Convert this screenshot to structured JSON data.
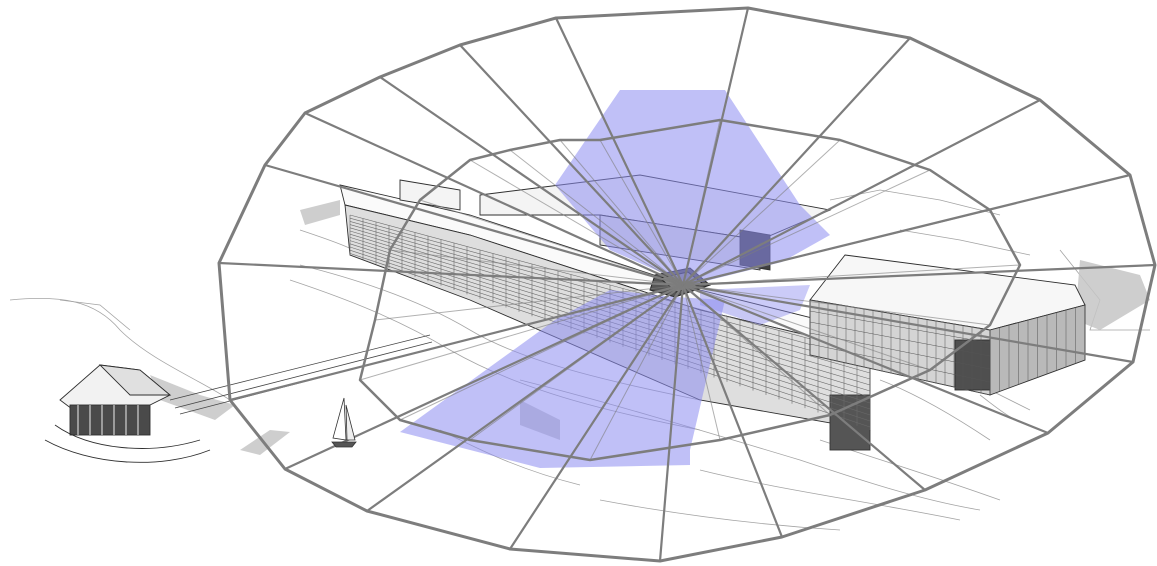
{
  "colors": {
    "background": "#ffffff",
    "grid_line": "#7d7d7d",
    "highlight_fill": "#8c8cf0",
    "building_line": "#3a3a3a",
    "terrain_line": "#9a9a9a",
    "shadow": "#c4c4c4"
  },
  "diagram": {
    "type": "isometric-architectural-sketch",
    "overlay": "polar-radial-grid",
    "ring_count": 2,
    "spoke_count": 20,
    "highlighted_sectors": 2
  },
  "icons": [
    "sailboat-icon"
  ]
}
